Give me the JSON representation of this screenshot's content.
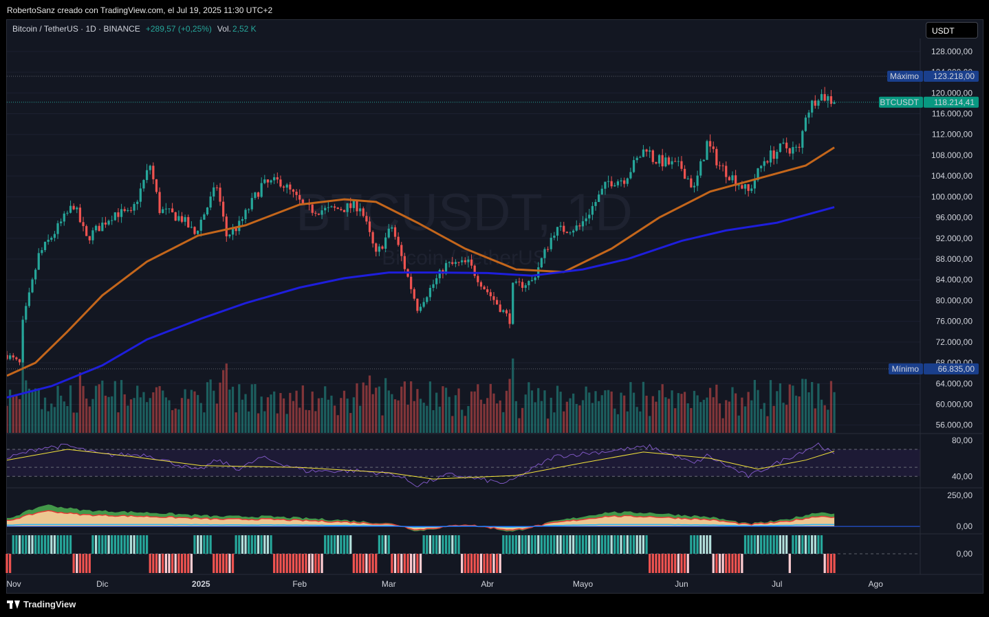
{
  "header": {
    "author_line": "RobertoSanz creado con TradingView.com, el Jul 19, 2025 11:30 UTC+2",
    "symbol_line": "Bitcoin / TetherUS · 1D · BINANCE",
    "change": "+289,57 (+0,25%)",
    "volume_label": "Vol.",
    "volume_value": "2,52 K",
    "currency_button": "USDT"
  },
  "watermark": {
    "main": "BTCUSDT, 1D",
    "sub": "Bitcoin / TetherUS"
  },
  "footer": {
    "brand": "TradingView"
  },
  "colors": {
    "up": "#26a69a",
    "down": "#ef5350",
    "background": "#131722",
    "ma_fast": "#c4661b",
    "ma_slow": "#1e1edc",
    "rsi": "#7e57c2",
    "rsi_ma": "#f5e53a",
    "last_price_badge": "#089981",
    "high_low_badge": "#1a3f8c"
  },
  "chart_data": {
    "type": "candlestick",
    "symbol": "BTCUSDT",
    "timeframe": "1D",
    "exchange": "BINANCE",
    "price_axis": {
      "ticks": [
        56000,
        60000,
        64000,
        68000,
        72000,
        76000,
        80000,
        84000,
        88000,
        92000,
        96000,
        100000,
        104000,
        108000,
        112000,
        116000,
        120000,
        124000,
        128000
      ],
      "tick_labels": [
        "56.000,00",
        "60.000,00",
        "64.000,00",
        "68.000,00",
        "72.000,00",
        "76.000,00",
        "80.000,00",
        "84.000,00",
        "88.000,00",
        "92.000,00",
        "96.000,00",
        "100.000,00",
        "104.000,00",
        "108.000,00",
        "112.000,00",
        "116.000,00",
        "120.000,00",
        "124.000,00",
        "128.000,00"
      ],
      "ylim": [
        54500,
        130500
      ]
    },
    "time_axis": {
      "labels": [
        "Nov",
        "Dic",
        "2025",
        "Feb",
        "Mar",
        "Abr",
        "Mayo",
        "Jun",
        "Jul",
        "Ago"
      ],
      "bold_labels": [
        "2025"
      ],
      "xlim": [
        "2024-11-01",
        "2025-08-15"
      ]
    },
    "markers": {
      "high": {
        "label": "Máximo",
        "value": 123218,
        "text": "123.218,00"
      },
      "low": {
        "label": "Mínimo",
        "value": 66835,
        "text": "66.835,00"
      },
      "last": {
        "label": "BTCUSDT",
        "value": 118214.41,
        "text": "118.214,41"
      }
    },
    "price_anchors": [
      {
        "date": "2024-11-01",
        "close": 69500
      },
      {
        "date": "2024-11-05",
        "close": 67800
      },
      {
        "date": "2024-11-06",
        "close": 75600
      },
      {
        "date": "2024-11-11",
        "close": 88700
      },
      {
        "date": "2024-11-13",
        "close": 90500
      },
      {
        "date": "2024-11-22",
        "close": 98500
      },
      {
        "date": "2024-11-26",
        "close": 91900
      },
      {
        "date": "2024-12-05",
        "close": 97000
      },
      {
        "date": "2024-12-10",
        "close": 96500
      },
      {
        "date": "2024-12-16",
        "close": 106100
      },
      {
        "date": "2024-12-19",
        "close": 97500
      },
      {
        "date": "2024-12-26",
        "close": 95800
      },
      {
        "date": "2024-12-30",
        "close": 92800
      },
      {
        "date": "2025-01-06",
        "close": 102100
      },
      {
        "date": "2025-01-09",
        "close": 92500
      },
      {
        "date": "2025-01-13",
        "close": 94500
      },
      {
        "date": "2025-01-20",
        "close": 102200
      },
      {
        "date": "2025-01-26",
        "close": 103000
      },
      {
        "date": "2025-02-03",
        "close": 97600
      },
      {
        "date": "2025-02-10",
        "close": 97400
      },
      {
        "date": "2025-02-20",
        "close": 98300
      },
      {
        "date": "2025-02-25",
        "close": 88700
      },
      {
        "date": "2025-03-02",
        "close": 94200
      },
      {
        "date": "2025-03-10",
        "close": 78600
      },
      {
        "date": "2025-03-19",
        "close": 86800
      },
      {
        "date": "2025-03-26",
        "close": 87200
      },
      {
        "date": "2025-03-31",
        "close": 82500
      },
      {
        "date": "2025-04-08",
        "close": 76300
      },
      {
        "date": "2025-04-09",
        "close": 82600
      },
      {
        "date": "2025-04-15",
        "close": 83700
      },
      {
        "date": "2025-04-22",
        "close": 93400
      },
      {
        "date": "2025-04-30",
        "close": 94200
      },
      {
        "date": "2025-05-09",
        "close": 102900
      },
      {
        "date": "2025-05-14",
        "close": 103500
      },
      {
        "date": "2025-05-21",
        "close": 109700
      },
      {
        "date": "2025-05-23",
        "close": 107300
      },
      {
        "date": "2025-06-01",
        "close": 105600
      },
      {
        "date": "2025-06-05",
        "close": 101500
      },
      {
        "date": "2025-06-09",
        "close": 110300
      },
      {
        "date": "2025-06-13",
        "close": 106000
      },
      {
        "date": "2025-06-22",
        "close": 100900
      },
      {
        "date": "2025-06-27",
        "close": 107100
      },
      {
        "date": "2025-07-03",
        "close": 109600
      },
      {
        "date": "2025-07-08",
        "close": 108900
      },
      {
        "date": "2025-07-10",
        "close": 116000
      },
      {
        "date": "2025-07-14",
        "close": 119800
      },
      {
        "date": "2025-07-17",
        "close": 119000
      },
      {
        "date": "2025-07-19",
        "close": 118214.41
      }
    ],
    "moving_averages": [
      {
        "period_hint": "fast",
        "color": "#c4661b",
        "points": [
          [
            "2024-11-01",
            65500
          ],
          [
            "2024-11-10",
            68000
          ],
          [
            "2024-11-20",
            74000
          ],
          [
            "2024-12-01",
            81000
          ],
          [
            "2024-12-15",
            87500
          ],
          [
            "2024-12-31",
            92500
          ],
          [
            "2025-01-15",
            94500
          ],
          [
            "2025-02-01",
            98500
          ],
          [
            "2025-02-15",
            99500
          ],
          [
            "2025-02-25",
            99000
          ],
          [
            "2025-03-10",
            95000
          ],
          [
            "2025-03-25",
            90000
          ],
          [
            "2025-04-10",
            86000
          ],
          [
            "2025-04-25",
            85500
          ],
          [
            "2025-05-10",
            90000
          ],
          [
            "2025-05-25",
            96000
          ],
          [
            "2025-06-10",
            101000
          ],
          [
            "2025-06-25",
            103500
          ],
          [
            "2025-07-10",
            106000
          ],
          [
            "2025-07-19",
            109500
          ]
        ]
      },
      {
        "period_hint": "slow",
        "color": "#1e1edc",
        "points": [
          [
            "2024-11-01",
            61300
          ],
          [
            "2024-11-15",
            63500
          ],
          [
            "2024-12-01",
            67500
          ],
          [
            "2024-12-15",
            72500
          ],
          [
            "2025-01-01",
            76500
          ],
          [
            "2025-01-15",
            79500
          ],
          [
            "2025-02-01",
            82500
          ],
          [
            "2025-02-15",
            84300
          ],
          [
            "2025-03-01",
            85400
          ],
          [
            "2025-03-15",
            85400
          ],
          [
            "2025-04-01",
            85300
          ],
          [
            "2025-04-15",
            84800
          ],
          [
            "2025-05-01",
            86000
          ],
          [
            "2025-05-15",
            88000
          ],
          [
            "2025-06-01",
            91500
          ],
          [
            "2025-06-15",
            93500
          ],
          [
            "2025-07-01",
            95000
          ],
          [
            "2025-07-19",
            98000
          ]
        ]
      }
    ],
    "rsi_panel": {
      "tick_labels": [
        "80,00",
        "40,00"
      ],
      "ylim": [
        28,
        86
      ],
      "band": [
        40,
        70
      ],
      "series": [
        [
          "2024-11-01",
          60
        ],
        [
          "2024-11-12",
          72
        ],
        [
          "2024-11-20",
          74
        ],
        [
          "2024-12-01",
          64
        ],
        [
          "2024-12-15",
          64
        ],
        [
          "2024-12-31",
          46
        ],
        [
          "2025-01-06",
          58
        ],
        [
          "2025-01-13",
          48
        ],
        [
          "2025-01-20",
          61
        ],
        [
          "2025-02-03",
          46
        ],
        [
          "2025-02-20",
          46
        ],
        [
          "2025-03-03",
          42
        ],
        [
          "2025-03-10",
          30
        ],
        [
          "2025-03-20",
          42
        ],
        [
          "2025-04-07",
          32
        ],
        [
          "2025-04-22",
          62
        ],
        [
          "2025-05-09",
          68
        ],
        [
          "2025-05-22",
          73
        ],
        [
          "2025-06-05",
          54
        ],
        [
          "2025-06-09",
          63
        ],
        [
          "2025-06-22",
          40
        ],
        [
          "2025-07-03",
          58
        ],
        [
          "2025-07-14",
          76
        ],
        [
          "2025-07-19",
          64
        ]
      ],
      "ma_series": [
        [
          "2024-11-01",
          58
        ],
        [
          "2024-11-20",
          70
        ],
        [
          "2024-12-10",
          62
        ],
        [
          "2025-01-01",
          52
        ],
        [
          "2025-02-01",
          50
        ],
        [
          "2025-03-01",
          44
        ],
        [
          "2025-03-15",
          37
        ],
        [
          "2025-04-10",
          41
        ],
        [
          "2025-05-01",
          55
        ],
        [
          "2025-05-20",
          67
        ],
        [
          "2025-06-10",
          60
        ],
        [
          "2025-06-25",
          48
        ],
        [
          "2025-07-10",
          58
        ],
        [
          "2025-07-19",
          68
        ]
      ]
    },
    "oscillator_panel": {
      "tick_labels": [
        "250,00",
        "0,00"
      ],
      "ylim": [
        -55,
        300
      ],
      "series": [
        [
          "2024-11-01",
          60
        ],
        [
          "2024-11-13",
          175
        ],
        [
          "2024-11-25",
          130
        ],
        [
          "2024-12-17",
          110
        ],
        [
          "2025-01-07",
          80
        ],
        [
          "2025-01-22",
          80
        ],
        [
          "2025-02-15",
          50
        ],
        [
          "2025-03-03",
          20
        ],
        [
          "2025-03-10",
          -40
        ],
        [
          "2025-03-25",
          20
        ],
        [
          "2025-04-09",
          -45
        ],
        [
          "2025-04-22",
          40
        ],
        [
          "2025-05-09",
          115
        ],
        [
          "2025-05-22",
          110
        ],
        [
          "2025-06-10",
          75
        ],
        [
          "2025-06-22",
          20
        ],
        [
          "2025-07-03",
          50
        ],
        [
          "2025-07-14",
          115
        ],
        [
          "2025-07-19",
          105
        ]
      ]
    },
    "trend_panel": {
      "tick_labels": [
        "0,00"
      ]
    }
  }
}
